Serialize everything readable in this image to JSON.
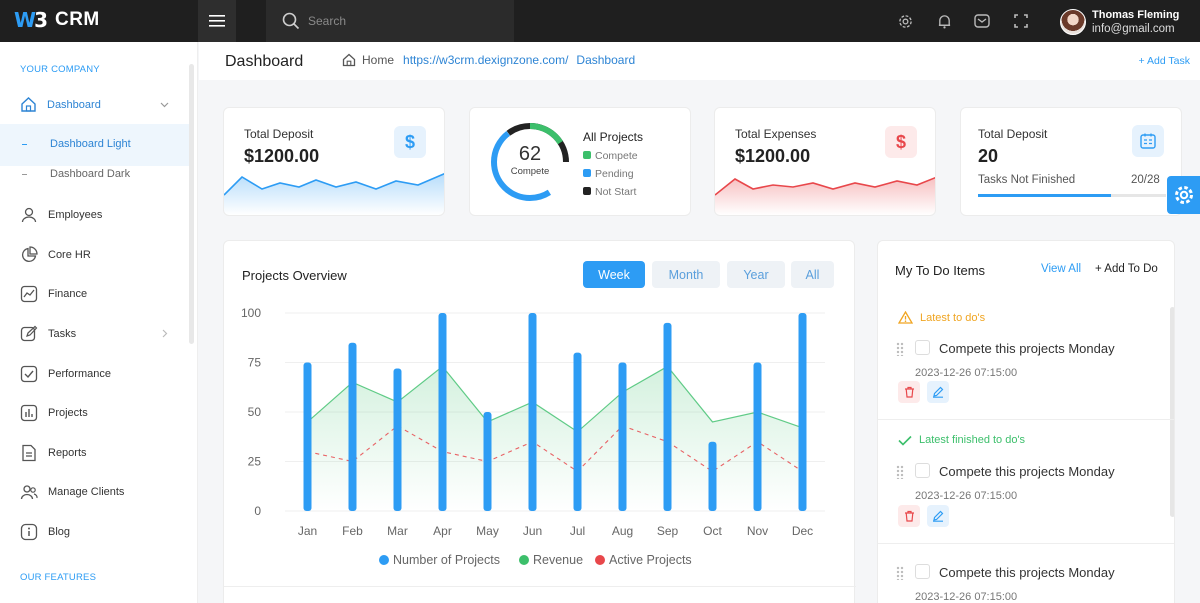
{
  "topbar": {
    "logo_mark": "W3",
    "brand": "CRM",
    "search_placeholder": "Search",
    "user": {
      "name": "Thomas Fleming",
      "email": "info@gmail.com"
    }
  },
  "sidebar": {
    "section_company": "YOUR COMPANY",
    "section_features": "OUR FEATURES",
    "active": "Dashboard",
    "sub_items": [
      "Dashboard Light",
      "Dashboard Dark"
    ],
    "items": [
      "Employees",
      "Core HR",
      "Finance",
      "Tasks",
      "Performance",
      "Projects",
      "Reports",
      "Manage Clients",
      "Blog"
    ]
  },
  "header": {
    "title": "Dashboard",
    "crumb_home": "Home",
    "crumb_url": "https://w3crm.dexignzone.com/",
    "crumb_page": "Dashboard",
    "add_task": "+ Add Task"
  },
  "cards": {
    "deposit": {
      "label": "Total Deposit",
      "value": "$1200.00",
      "icon": "$"
    },
    "projects": {
      "title": "All Projects",
      "center_value": "62",
      "center_label": "Compete",
      "legend": [
        "Compete",
        "Pending",
        "Not Start"
      ]
    },
    "expenses": {
      "label": "Total Expenses",
      "value": "$1200.00",
      "icon": "$"
    },
    "tasks": {
      "label": "Total Deposit",
      "value": "20",
      "sub_label": "Tasks Not Finished",
      "progress_text": "20/28",
      "progress": 0.71
    }
  },
  "colors": {
    "accent": "#2d9cf4",
    "green": "#3cbf6b",
    "red": "#e8474b",
    "dark": "#222222"
  },
  "overview": {
    "title": "Projects Overview",
    "tabs": [
      "Week",
      "Month",
      "Year",
      "All"
    ],
    "active_tab": "Week"
  },
  "chart_data": {
    "type": "bar",
    "categories": [
      "Jan",
      "Feb",
      "Mar",
      "Apr",
      "May",
      "Jun",
      "Jul",
      "Aug",
      "Sep",
      "Oct",
      "Nov",
      "Dec"
    ],
    "ylim": [
      0,
      100
    ],
    "yticks": [
      "0",
      "25",
      "50",
      "75",
      "100"
    ],
    "series": [
      {
        "name": "Number of Projects",
        "type": "bar",
        "color": "#2d9cf4",
        "values": [
          75,
          85,
          72,
          100,
          50,
          100,
          80,
          75,
          95,
          35,
          75,
          100
        ]
      },
      {
        "name": "Revenue",
        "type": "area",
        "color": "#3cbf6b",
        "values": [
          45,
          65,
          55,
          73,
          45,
          55,
          40,
          60,
          73,
          45,
          50,
          42
        ]
      },
      {
        "name": "Active Projects",
        "type": "line",
        "dash": true,
        "color": "#e8474b",
        "values": [
          30,
          25,
          43,
          30,
          25,
          35,
          20,
          43,
          35,
          20,
          35,
          20
        ]
      }
    ]
  },
  "todo": {
    "title": "My To Do Items",
    "view_all": "View All",
    "add": "+ Add To Do",
    "latest_label": "Latest to do's",
    "finished_label": "Latest finished to do's",
    "items": [
      {
        "text": "Compete this projects Monday",
        "date": "2023-12-26 07:15:00"
      },
      {
        "text": "Compete this projects Monday",
        "date": "2023-12-26 07:15:00"
      },
      {
        "text": "Compete this projects Monday",
        "date": "2023-12-26 07:15:00"
      }
    ]
  }
}
